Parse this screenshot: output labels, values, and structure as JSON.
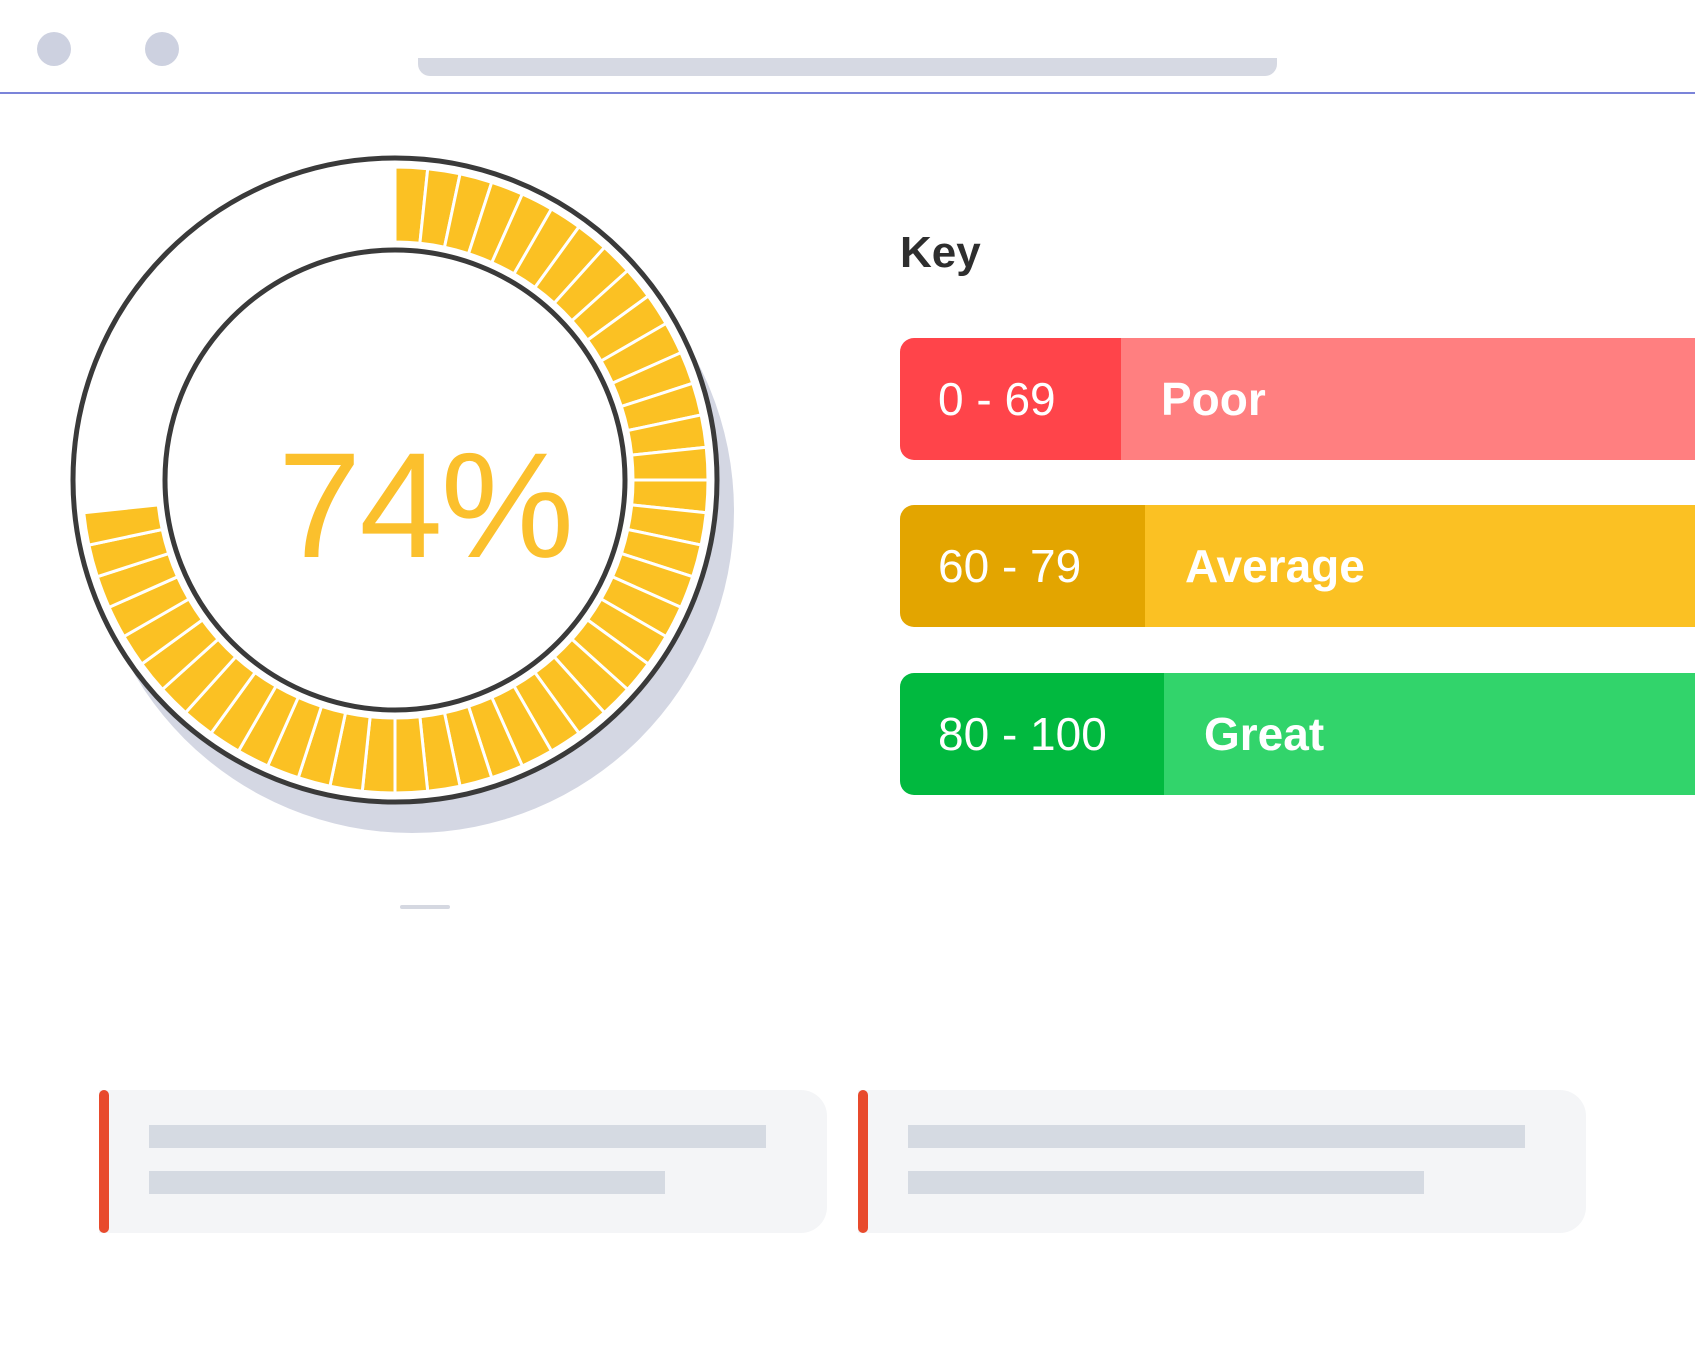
{
  "window": {
    "controls": [
      "window-dot",
      "window-dot"
    ]
  },
  "gauge": {
    "value_label": "74%",
    "fraction": 0.74,
    "fill_color": "#fbc123",
    "segments": 60
  },
  "key": {
    "title": "Key",
    "rows": [
      {
        "range": "0 - 69",
        "label": "Poor",
        "range_color": "#ff444a",
        "label_color": "#ff7f80"
      },
      {
        "range": "60 - 79",
        "label": "Average",
        "range_color": "#e3a500",
        "label_color": "#fbc123"
      },
      {
        "range": "80 - 100",
        "label": "Great",
        "range_color": "#01b93f",
        "label_color": "#32d46b"
      }
    ]
  },
  "colors": {
    "accent_border": "#7b84d9",
    "card_accent": "#e84a2c"
  }
}
